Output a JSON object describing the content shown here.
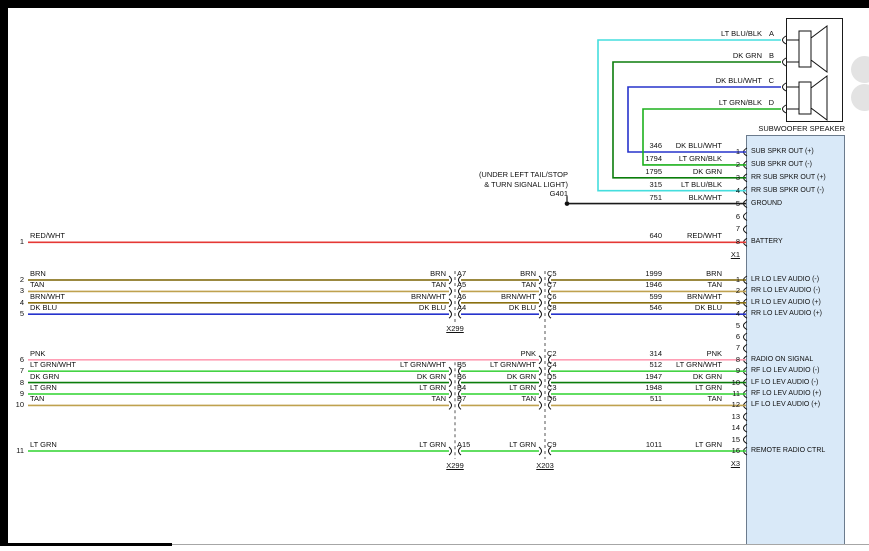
{
  "colors": {
    "RED/WHT": "#e53935",
    "BRN": "#7a6200",
    "TAN": "#bfa14f",
    "BRN/WHT": "#8a7010",
    "DK BLU": "#2633cc",
    "PNK": "#ff9fb5",
    "LT GRN/WHT": "#44d344",
    "DK GRN": "#0b7d0b",
    "LT GRN": "#2fd32f",
    "LT BLU/BLK": "#45dede",
    "LT GRN/BLK": "#1db01d",
    "DK BLU/WHT": "#2633cc",
    "BLK/WHT": "#1a1a1a"
  },
  "speaker_box": {
    "title": "SUBWOOFER SPEAKER",
    "pins": [
      {
        "pin": "A",
        "wire": "LT BLU/BLK"
      },
      {
        "pin": "B",
        "wire": "DK GRN"
      },
      {
        "pin": "C",
        "wire": "DK BLU/WHT"
      },
      {
        "pin": "D",
        "wire": "LT GRN/BLK"
      }
    ]
  },
  "ground_note": {
    "line1": "(UNDER LEFT TAIL/STOP",
    "line2": "& TURN SIGNAL LIGHT)",
    "id": "G401"
  },
  "connector_x1": {
    "id": "X1",
    "pins": [
      {
        "num": "1",
        "circuit": "346",
        "wire": "DK BLU/WHT",
        "label": "SUB SPKR OUT (+)"
      },
      {
        "num": "2",
        "circuit": "1794",
        "wire": "LT GRN/BLK",
        "label": "SUB SPKR OUT (-)"
      },
      {
        "num": "3",
        "circuit": "1795",
        "wire": "DK GRN",
        "label": "RR SUB SPKR OUT (+)"
      },
      {
        "num": "4",
        "circuit": "315",
        "wire": "LT BLU/BLK",
        "label": "RR SUB SPKR OUT (-)"
      },
      {
        "num": "5",
        "circuit": "751",
        "wire": "BLK/WHT",
        "label": "GROUND"
      },
      {
        "num": "6"
      },
      {
        "num": "7"
      },
      {
        "num": "8",
        "circuit": "640",
        "wire": "RED/WHT",
        "label": "BATTERY"
      }
    ]
  },
  "connector_x3": {
    "id": "X3",
    "pins": [
      {
        "num": "1",
        "circuit": "1999",
        "wire": "BRN",
        "label": "LR LO LEV AUDIO (-)"
      },
      {
        "num": "2",
        "circuit": "1946",
        "wire": "TAN",
        "label": "RR LO LEV AUDIO (-)"
      },
      {
        "num": "3",
        "circuit": "599",
        "wire": "BRN/WHT",
        "label": "LR LO LEV AUDIO (+)"
      },
      {
        "num": "4",
        "circuit": "546",
        "wire": "DK BLU",
        "label": "RR LO LEV AUDIO (+)"
      },
      {
        "num": "5"
      },
      {
        "num": "6"
      },
      {
        "num": "7"
      },
      {
        "num": "8",
        "circuit": "314",
        "wire": "PNK",
        "label": "RADIO ON SIGNAL"
      },
      {
        "num": "9",
        "circuit": "512",
        "wire": "LT GRN/WHT",
        "label": "RF LO LEV AUDIO (-)"
      },
      {
        "num": "10",
        "circuit": "1947",
        "wire": "DK GRN",
        "label": "LF LO LEV AUDIO (-)"
      },
      {
        "num": "11",
        "circuit": "1948",
        "wire": "LT GRN",
        "label": "RF LO LEV AUDIO (+)"
      },
      {
        "num": "12",
        "circuit": "511",
        "wire": "TAN",
        "label": "LF LO LEV AUDIO (+)"
      },
      {
        "num": "13"
      },
      {
        "num": "14"
      },
      {
        "num": "15"
      },
      {
        "num": "16",
        "circuit": "1011",
        "wire": "LT GRN",
        "label": "REMOTE RADIO CTRL"
      }
    ]
  },
  "harness_rows": [
    {
      "row": "1",
      "wire": "RED/WHT",
      "breaks": [
        null,
        null
      ],
      "to": [
        "X1",
        "8"
      ]
    },
    {
      "row": "2",
      "wire": "BRN",
      "breaks": [
        {
          "pin": "A7"
        },
        {
          "pin": "C5"
        }
      ],
      "to": [
        "X3",
        "1"
      ]
    },
    {
      "row": "3",
      "wire": "TAN",
      "breaks": [
        {
          "pin": "A5"
        },
        {
          "pin": "C7"
        }
      ],
      "to": [
        "X3",
        "2"
      ]
    },
    {
      "row": "4",
      "wire": "BRN/WHT",
      "breaks": [
        {
          "pin": "A6"
        },
        {
          "pin": "C6"
        }
      ],
      "to": [
        "X3",
        "3"
      ]
    },
    {
      "row": "5",
      "wire": "DK BLU",
      "breaks": [
        {
          "pin": "A4"
        },
        {
          "pin": "C8"
        }
      ],
      "to": [
        "X3",
        "4"
      ]
    },
    {
      "row": "6",
      "wire": "PNK",
      "breaks": [
        null,
        {
          "pin": "C2"
        }
      ],
      "to": [
        "X3",
        "8"
      ]
    },
    {
      "row": "7",
      "wire": "LT GRN/WHT",
      "breaks": [
        {
          "pin": "B5"
        },
        {
          "pin": "C4"
        }
      ],
      "to": [
        "X3",
        "9"
      ]
    },
    {
      "row": "8",
      "wire": "DK GRN",
      "breaks": [
        {
          "pin": "B6"
        },
        {
          "pin": "D5"
        }
      ],
      "to": [
        "X3",
        "10"
      ]
    },
    {
      "row": "9",
      "wire": "LT GRN",
      "breaks": [
        {
          "pin": "B4"
        },
        {
          "pin": "C3"
        }
      ],
      "to": [
        "X3",
        "11"
      ]
    },
    {
      "row": "10",
      "wire": "TAN",
      "breaks": [
        {
          "pin": "B7"
        },
        {
          "pin": "D6"
        }
      ],
      "to": [
        "X3",
        "12"
      ]
    },
    {
      "row": "11",
      "wire": "LT GRN",
      "breaks": [
        {
          "pin": "A15"
        },
        {
          "pin": "C9"
        }
      ],
      "to": [
        "X3",
        "16"
      ]
    }
  ],
  "inline_connectors": [
    {
      "id": "X299",
      "col": 0,
      "row_segments": [
        [
          2,
          5
        ],
        [
          7,
          11
        ]
      ]
    },
    {
      "id": "X203",
      "col": 1,
      "row_segments": [
        [
          2,
          11
        ]
      ]
    }
  ]
}
